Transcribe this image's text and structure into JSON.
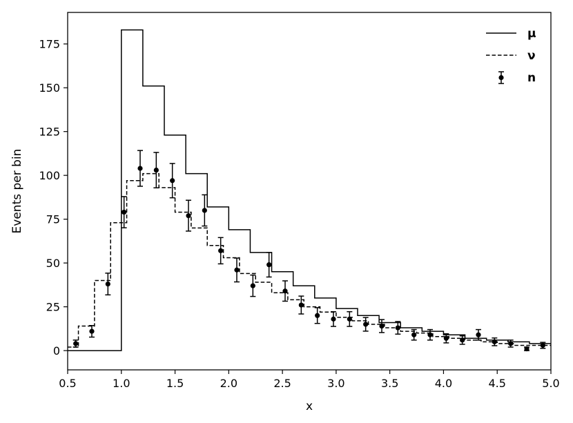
{
  "chart_data": {
    "type": "line",
    "title": "",
    "xlabel": "x",
    "ylabel": "Events per bin",
    "xlim": [
      0.5,
      5.0
    ],
    "ylim": [
      -11,
      193
    ],
    "x_ticks": [
      0.5,
      1.0,
      1.5,
      2.0,
      2.5,
      3.0,
      3.5,
      4.0,
      4.5,
      5.0
    ],
    "x_tick_labels": [
      "0.5",
      "1.0",
      "1.5",
      "2.0",
      "2.5",
      "3.0",
      "3.5",
      "4.0",
      "4.5",
      "5.0"
    ],
    "y_ticks": [
      0,
      25,
      50,
      75,
      100,
      125,
      150,
      175
    ],
    "y_tick_labels": [
      "0",
      "25",
      "50",
      "75",
      "100",
      "125",
      "150",
      "175"
    ],
    "grid": false,
    "legend_position": "top-right",
    "bin_edges": [
      0.5,
      0.65,
      0.8,
      0.95,
      1.1,
      1.25,
      1.4,
      1.55,
      1.7,
      1.85,
      2.0,
      2.15,
      2.3,
      2.45,
      2.6,
      2.75,
      2.9,
      3.05,
      3.2,
      3.35,
      3.5,
      3.65,
      3.8,
      3.95,
      4.1,
      4.25,
      4.4,
      4.55,
      4.7,
      4.85,
      5.0
    ],
    "series": [
      {
        "name": "μ",
        "style": "solid",
        "steps": [
          [
            0.5,
            0
          ],
          [
            1.0,
            0
          ],
          [
            1.0,
            183
          ],
          [
            1.2,
            183
          ],
          [
            1.2,
            151
          ],
          [
            1.4,
            151
          ],
          [
            1.4,
            123
          ],
          [
            1.6,
            123
          ],
          [
            1.6,
            101
          ],
          [
            1.8,
            101
          ],
          [
            1.8,
            82
          ],
          [
            2.0,
            82
          ],
          [
            2.0,
            69
          ],
          [
            2.2,
            69
          ],
          [
            2.2,
            56
          ],
          [
            2.4,
            56
          ],
          [
            2.4,
            45
          ],
          [
            2.6,
            45
          ],
          [
            2.6,
            37
          ],
          [
            2.8,
            37
          ],
          [
            2.8,
            30
          ],
          [
            3.0,
            30
          ],
          [
            3.0,
            24
          ],
          [
            3.2,
            24
          ],
          [
            3.2,
            20
          ],
          [
            3.4,
            20
          ],
          [
            3.4,
            16
          ],
          [
            3.6,
            16
          ],
          [
            3.6,
            13
          ],
          [
            3.8,
            13
          ],
          [
            3.8,
            11
          ],
          [
            4.0,
            11
          ],
          [
            4.0,
            9
          ],
          [
            4.2,
            9
          ],
          [
            4.2,
            7
          ],
          [
            4.4,
            7
          ],
          [
            4.4,
            6
          ],
          [
            4.6,
            6
          ],
          [
            4.6,
            5
          ],
          [
            4.8,
            5
          ],
          [
            4.8,
            4
          ],
          [
            5.0,
            4
          ]
        ]
      },
      {
        "name": "ν",
        "style": "dashed",
        "steps": [
          [
            0.5,
            2
          ],
          [
            0.6,
            2
          ],
          [
            0.6,
            14
          ],
          [
            0.75,
            14
          ],
          [
            0.75,
            40
          ],
          [
            0.9,
            40
          ],
          [
            0.9,
            73
          ],
          [
            1.05,
            73
          ],
          [
            1.05,
            97
          ],
          [
            1.2,
            97
          ],
          [
            1.2,
            101
          ],
          [
            1.35,
            101
          ],
          [
            1.35,
            93
          ],
          [
            1.5,
            93
          ],
          [
            1.5,
            79
          ],
          [
            1.65,
            79
          ],
          [
            1.65,
            70
          ],
          [
            1.8,
            70
          ],
          [
            1.8,
            60
          ],
          [
            1.95,
            60
          ],
          [
            1.95,
            53
          ],
          [
            2.1,
            53
          ],
          [
            2.1,
            44
          ],
          [
            2.25,
            44
          ],
          [
            2.25,
            39
          ],
          [
            2.4,
            39
          ],
          [
            2.4,
            33
          ],
          [
            2.55,
            33
          ],
          [
            2.55,
            29
          ],
          [
            2.7,
            29
          ],
          [
            2.7,
            25
          ],
          [
            2.85,
            25
          ],
          [
            2.85,
            22
          ],
          [
            3.0,
            22
          ],
          [
            3.0,
            19
          ],
          [
            3.15,
            19
          ],
          [
            3.15,
            17
          ],
          [
            3.3,
            17
          ],
          [
            3.3,
            15
          ],
          [
            3.45,
            15
          ],
          [
            3.45,
            13
          ],
          [
            3.6,
            13
          ],
          [
            3.6,
            11
          ],
          [
            3.75,
            11
          ],
          [
            3.75,
            10
          ],
          [
            3.9,
            10
          ],
          [
            3.9,
            8
          ],
          [
            4.05,
            8
          ],
          [
            4.05,
            7
          ],
          [
            4.2,
            7
          ],
          [
            4.2,
            6
          ],
          [
            4.35,
            6
          ],
          [
            4.35,
            5
          ],
          [
            4.5,
            5
          ],
          [
            4.5,
            4
          ],
          [
            4.65,
            4
          ],
          [
            4.65,
            3
          ],
          [
            4.8,
            3
          ],
          [
            4.8,
            3
          ],
          [
            5.0,
            3
          ]
        ]
      },
      {
        "name": "n",
        "style": "errorbar",
        "points": [
          {
            "x": 0.575,
            "y": 4,
            "err": 2
          },
          {
            "x": 0.725,
            "y": 11,
            "err": 3.3
          },
          {
            "x": 0.875,
            "y": 38,
            "err": 6.2
          },
          {
            "x": 1.025,
            "y": 79,
            "err": 8.9
          },
          {
            "x": 1.175,
            "y": 104,
            "err": 10.2
          },
          {
            "x": 1.325,
            "y": 103,
            "err": 10.1
          },
          {
            "x": 1.475,
            "y": 97,
            "err": 9.8
          },
          {
            "x": 1.625,
            "y": 77,
            "err": 8.8
          },
          {
            "x": 1.775,
            "y": 80,
            "err": 8.9
          },
          {
            "x": 1.925,
            "y": 57,
            "err": 7.5
          },
          {
            "x": 2.075,
            "y": 46,
            "err": 6.8
          },
          {
            "x": 2.225,
            "y": 37,
            "err": 6.1
          },
          {
            "x": 2.375,
            "y": 49,
            "err": 7
          },
          {
            "x": 2.525,
            "y": 34,
            "err": 5.8
          },
          {
            "x": 2.675,
            "y": 26,
            "err": 5.1
          },
          {
            "x": 2.825,
            "y": 20,
            "err": 4.5
          },
          {
            "x": 2.975,
            "y": 18,
            "err": 4.2
          },
          {
            "x": 3.125,
            "y": 18,
            "err": 4.2
          },
          {
            "x": 3.275,
            "y": 15,
            "err": 3.9
          },
          {
            "x": 3.425,
            "y": 14,
            "err": 3.7
          },
          {
            "x": 3.575,
            "y": 13,
            "err": 3.6
          },
          {
            "x": 3.725,
            "y": 9,
            "err": 3
          },
          {
            "x": 3.875,
            "y": 9,
            "err": 3
          },
          {
            "x": 4.025,
            "y": 7,
            "err": 2.6
          },
          {
            "x": 4.175,
            "y": 6,
            "err": 2.4
          },
          {
            "x": 4.325,
            "y": 9,
            "err": 3
          },
          {
            "x": 4.475,
            "y": 5,
            "err": 2.2
          },
          {
            "x": 4.625,
            "y": 4,
            "err": 2
          },
          {
            "x": 4.775,
            "y": 1,
            "err": 1
          },
          {
            "x": 4.925,
            "y": 3,
            "err": 1.7
          }
        ]
      }
    ]
  }
}
